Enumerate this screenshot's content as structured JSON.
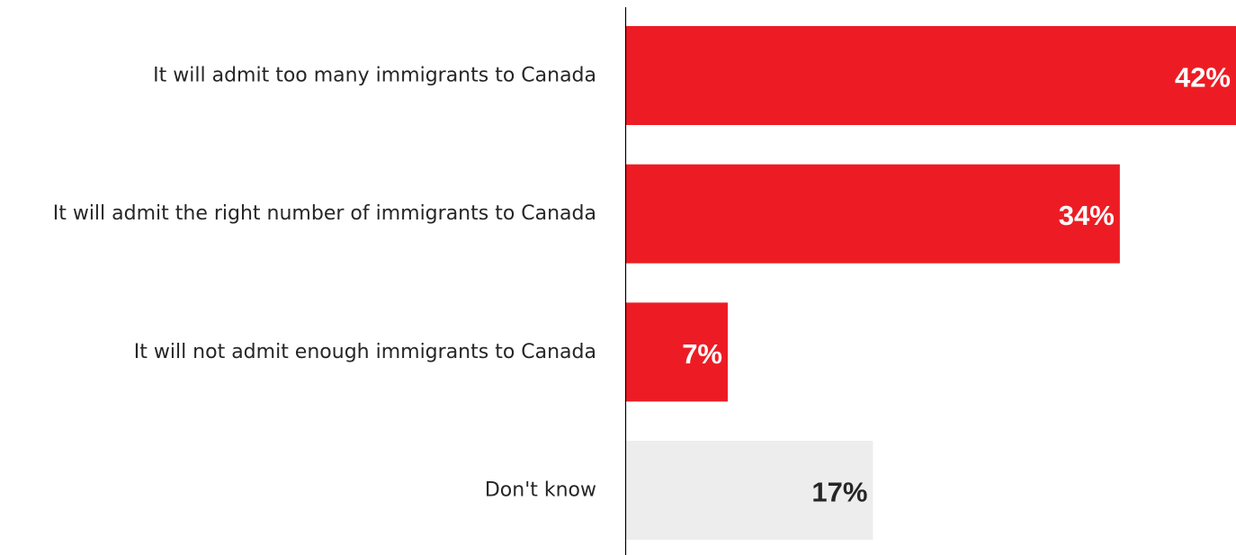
{
  "chart_data": {
    "type": "bar",
    "orientation": "horizontal",
    "title": "",
    "xlabel": "",
    "ylabel": "",
    "categories": [
      "It will admit too many immigrants to Canada",
      "It will admit the right number of immigrants to Canada",
      "It will not admit enough immigrants to Canada",
      "Don't know"
    ],
    "values": [
      42,
      34,
      7,
      17
    ],
    "value_labels": [
      "42%",
      "34%",
      "7%",
      "17%"
    ],
    "xlim": [
      0,
      42
    ],
    "grid": false,
    "legend": "none",
    "bar_colors": [
      "#ed1c24",
      "#ed1c24",
      "#ed1c24",
      "#ededed"
    ],
    "value_label_colors": [
      "#ffffff",
      "#ffffff",
      "#ffffff",
      "#262626"
    ],
    "category_label_color": "#262626",
    "axis_color": "#000000"
  }
}
